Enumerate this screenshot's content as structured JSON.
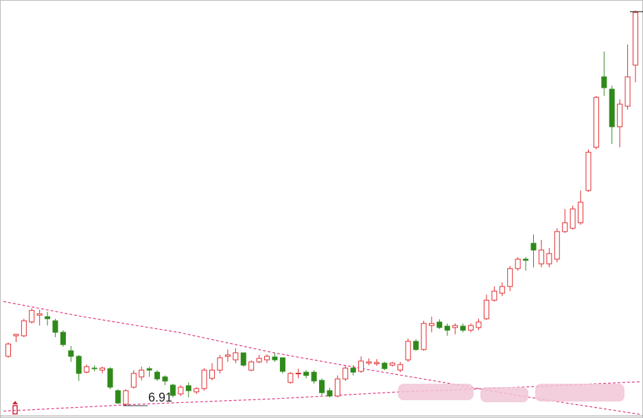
{
  "chart_data": {
    "type": "candlestick",
    "ylim": [
      6.41,
      26.48
    ],
    "up_color": "#e0262a",
    "down_color": "#2f8a1a",
    "low_marker": 6.91,
    "open": [
      9.31,
      10.31,
      10.31,
      10.98,
      11.31,
      11.24,
      11.04,
      10.48,
      9.58,
      9.31,
      8.54,
      8.74,
      8.64,
      8.71,
      7.64,
      6.98,
      7.81,
      8.31,
      8.71,
      8.54,
      8.31,
      7.91,
      7.48,
      7.88,
      7.58,
      7.74,
      8.24,
      8.64,
      9.31,
      9.14,
      9.48,
      8.64,
      9.04,
      9.14,
      9.28,
      9.24,
      8.04,
      8.48,
      8.54,
      8.54,
      8.14,
      7.64,
      7.38,
      8.21,
      8.74,
      8.58,
      8.98,
      8.95,
      8.98,
      8.88,
      8.64,
      9.14,
      10.04,
      9.64,
      10.81,
      10.98,
      10.78,
      10.71,
      10.78,
      10.58,
      10.71,
      11.14,
      12.04,
      12.38,
      12.71,
      13.58,
      14.04,
      14.81,
      13.81,
      13.81,
      14.04,
      15.38,
      15.54,
      15.81,
      17.38,
      19.48,
      22.91,
      22.31,
      20.48,
      21.48,
      23.48
    ],
    "high": [
      9.98,
      10.41,
      11.14,
      11.64,
      11.58,
      11.48,
      11.14,
      10.58,
      9.81,
      9.38,
      8.91,
      8.88,
      8.81,
      8.78,
      7.71,
      7.71,
      8.64,
      8.81,
      8.81,
      8.64,
      8.38,
      7.98,
      7.91,
      8.04,
      7.81,
      8.74,
      8.98,
      9.38,
      9.64,
      9.71,
      9.48,
      9.11,
      9.38,
      9.41,
      9.48,
      9.24,
      8.54,
      8.71,
      8.64,
      8.64,
      8.24,
      7.78,
      8.38,
      8.88,
      8.88,
      9.31,
      9.21,
      9.18,
      9.04,
      9.04,
      9.04,
      10.18,
      10.14,
      11.04,
      11.24,
      11.11,
      10.91,
      10.91,
      10.91,
      10.91,
      11.14,
      12.31,
      12.71,
      12.91,
      13.71,
      14.14,
      14.14,
      15.24,
      14.98,
      14.58,
      15.54,
      16.48,
      16.64,
      17.38,
      19.38,
      21.98,
      24.14,
      22.48,
      21.81,
      24.48,
      26.14
    ],
    "low": [
      9.24,
      10.0,
      10.24,
      10.91,
      10.81,
      10.81,
      10.24,
      9.78,
      9.04,
      8.11,
      8.48,
      8.58,
      8.48,
      7.71,
      6.98,
      6.91,
      7.74,
      8.14,
      8.31,
      8.11,
      7.91,
      7.31,
      7.38,
      7.31,
      7.48,
      7.64,
      8.14,
      8.48,
      9.04,
      8.98,
      8.81,
      8.58,
      8.98,
      8.98,
      9.04,
      8.48,
      7.98,
      8.24,
      8.24,
      7.98,
      7.41,
      7.31,
      7.31,
      8.11,
      8.38,
      8.51,
      8.88,
      8.85,
      8.64,
      8.81,
      8.54,
      9.04,
      9.58,
      9.58,
      10.48,
      10.64,
      10.31,
      10.38,
      10.48,
      10.48,
      10.58,
      11.08,
      11.98,
      12.24,
      12.48,
      13.48,
      13.48,
      13.64,
      13.64,
      13.64,
      13.88,
      15.31,
      15.48,
      15.71,
      17.31,
      19.38,
      21.98,
      19.64,
      19.48,
      21.31,
      22.64
    ],
    "close": [
      9.91,
      10.38,
      11.04,
      11.54,
      11.38,
      11.14,
      10.48,
      9.88,
      9.31,
      8.48,
      8.81,
      8.71,
      8.74,
      7.81,
      7.04,
      7.64,
      8.48,
      8.64,
      8.64,
      8.21,
      8.11,
      7.41,
      7.81,
      7.64,
      7.74,
      8.64,
      8.64,
      9.24,
      9.38,
      9.48,
      8.88,
      9.04,
      9.21,
      9.31,
      9.14,
      8.58,
      8.48,
      8.49,
      8.38,
      8.11,
      7.54,
      7.38,
      8.21,
      8.74,
      8.54,
      9.08,
      9.04,
      9.01,
      8.71,
      8.98,
      8.91,
      10.04,
      9.64,
      10.91,
      10.91,
      10.71,
      10.58,
      10.81,
      10.58,
      10.81,
      10.98,
      12.04,
      12.48,
      12.71,
      13.58,
      14.04,
      13.98,
      14.48,
      14.48,
      14.31,
      15.38,
      15.81,
      16.48,
      16.81,
      19.24,
      21.91,
      22.38,
      20.48,
      21.58,
      22.91,
      26.04
    ]
  }
}
